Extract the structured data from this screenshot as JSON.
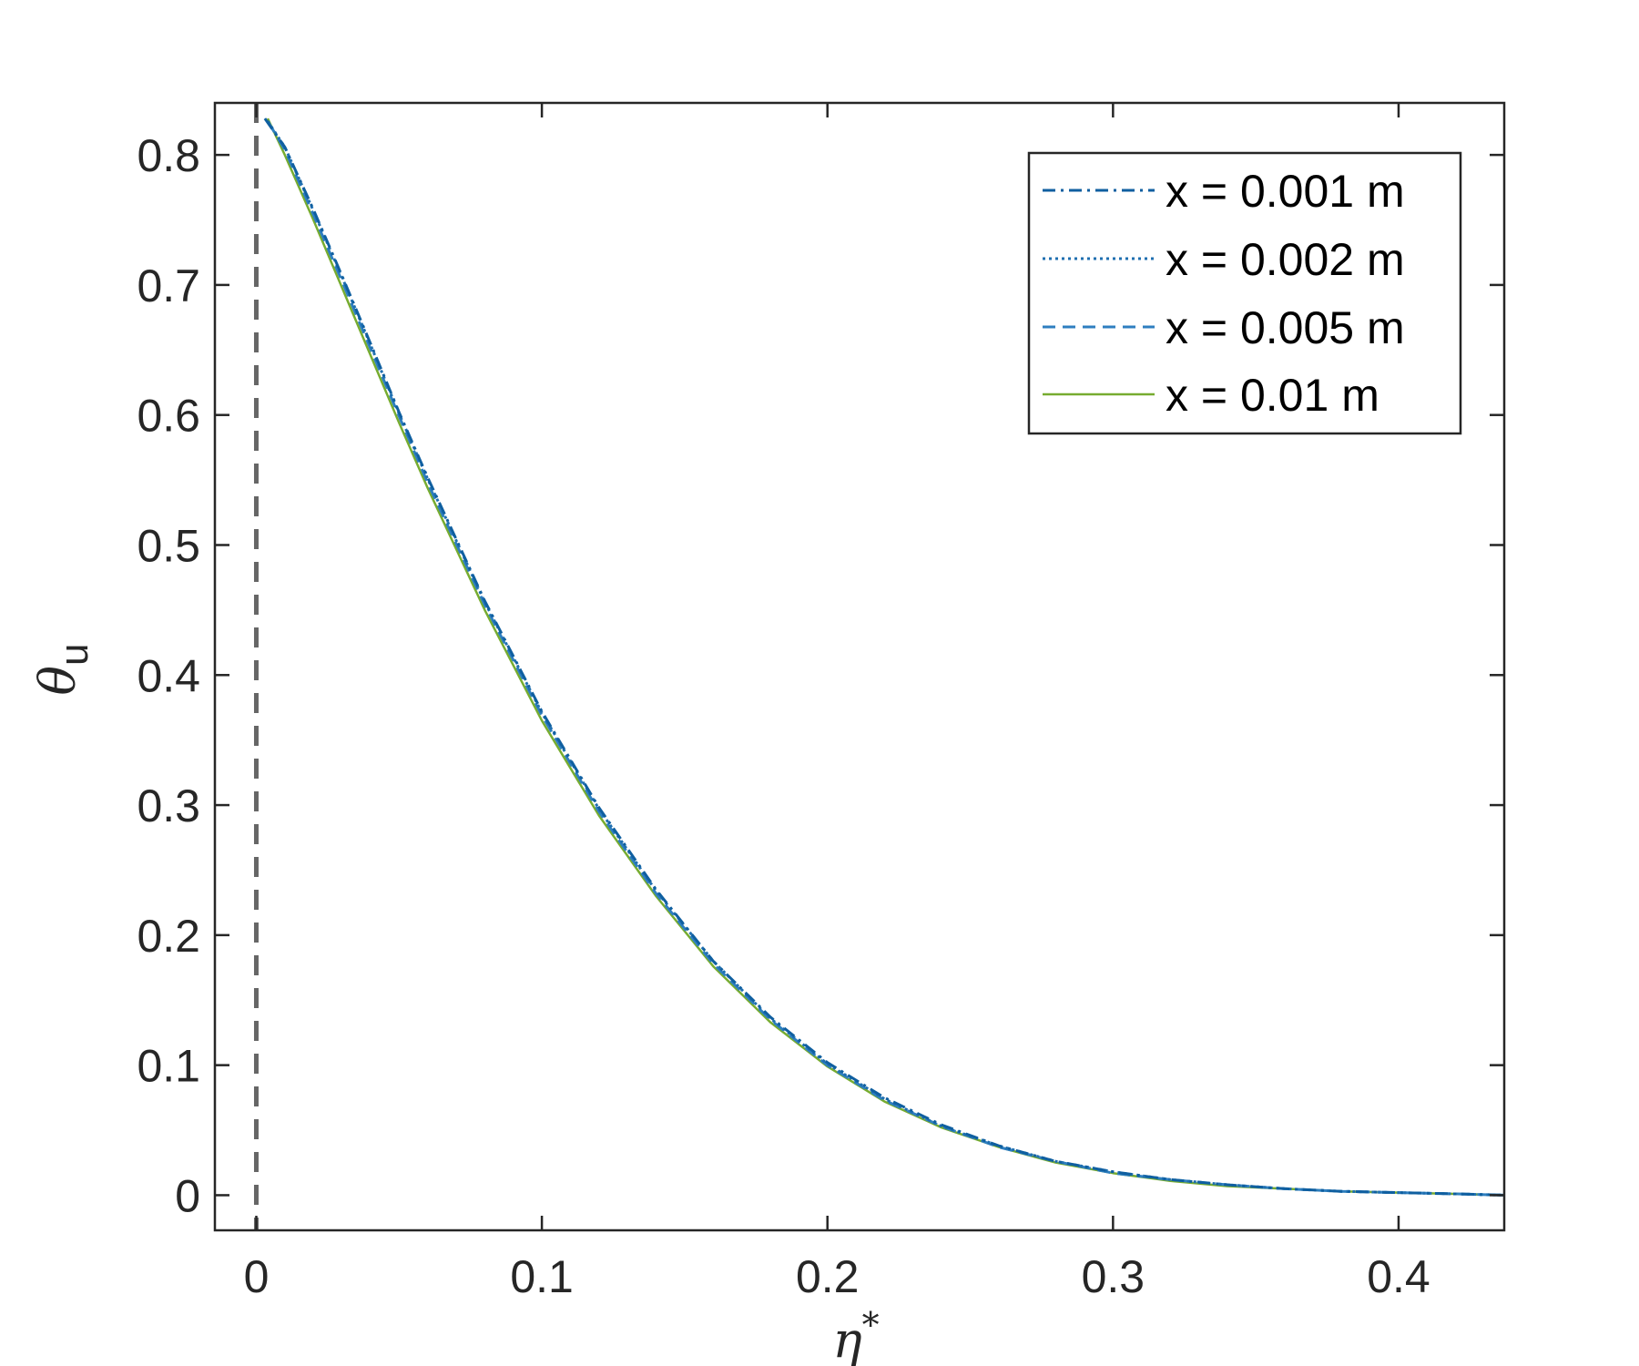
{
  "chart_data": {
    "type": "line",
    "xlabel": {
      "symbol": "η",
      "sup": "*"
    },
    "ylabel": {
      "symbol": "θ",
      "sub": "u"
    },
    "xlim": [
      -0.0145,
      0.437
    ],
    "ylim": [
      -0.027,
      0.84
    ],
    "xticks": [
      0,
      0.1,
      0.2,
      0.3,
      0.4
    ],
    "xtick_labels": [
      "0",
      "0.1",
      "0.2",
      "0.3",
      "0.4"
    ],
    "yticks": [
      0,
      0.1,
      0.2,
      0.3,
      0.4,
      0.5,
      0.6,
      0.7,
      0.8
    ],
    "ytick_labels": [
      "0",
      "0.1",
      "0.2",
      "0.3",
      "0.4",
      "0.5",
      "0.6",
      "0.7",
      "0.8"
    ],
    "grid": false,
    "legend_position": "top-right",
    "reference_line": {
      "x": 0,
      "color": "#666666",
      "style": "dashed"
    },
    "series": [
      {
        "name": "x = 0.001 m",
        "color": "#0f5fa0",
        "style": "dashdot",
        "x": [
          0.003,
          0.01,
          0.02,
          0.03,
          0.04,
          0.05,
          0.06,
          0.08,
          0.1,
          0.12,
          0.14,
          0.16,
          0.18,
          0.2,
          0.22,
          0.24,
          0.26,
          0.28,
          0.3,
          0.32,
          0.34,
          0.36,
          0.38,
          0.4,
          0.42,
          0.437
        ],
        "y": [
          0.828,
          0.806,
          0.758,
          0.707,
          0.655,
          0.602,
          0.552,
          0.457,
          0.372,
          0.298,
          0.235,
          0.18,
          0.137,
          0.102,
          0.075,
          0.054,
          0.038,
          0.026,
          0.018,
          0.012,
          0.008,
          0.005,
          0.003,
          0.002,
          0.001,
          0.0
        ]
      },
      {
        "name": "x = 0.002 m",
        "color": "#1f6fb0",
        "style": "dotted",
        "x": [
          0.004,
          0.01,
          0.02,
          0.03,
          0.04,
          0.05,
          0.06,
          0.08,
          0.1,
          0.12,
          0.14,
          0.16,
          0.18,
          0.2,
          0.22,
          0.24,
          0.26,
          0.28,
          0.3,
          0.32,
          0.34,
          0.36,
          0.38,
          0.4,
          0.42,
          0.437
        ],
        "y": [
          0.826,
          0.806,
          0.757,
          0.706,
          0.654,
          0.601,
          0.551,
          0.456,
          0.371,
          0.297,
          0.234,
          0.18,
          0.136,
          0.101,
          0.074,
          0.053,
          0.038,
          0.026,
          0.018,
          0.012,
          0.008,
          0.005,
          0.003,
          0.002,
          0.001,
          0.0
        ]
      },
      {
        "name": "x = 0.005 m",
        "color": "#2f7fc0",
        "style": "dashed",
        "x": [
          0.004,
          0.01,
          0.02,
          0.03,
          0.04,
          0.05,
          0.06,
          0.08,
          0.1,
          0.12,
          0.14,
          0.16,
          0.18,
          0.2,
          0.22,
          0.24,
          0.26,
          0.28,
          0.3,
          0.32,
          0.34,
          0.36,
          0.38,
          0.4,
          0.42,
          0.437
        ],
        "y": [
          0.826,
          0.804,
          0.754,
          0.703,
          0.651,
          0.599,
          0.548,
          0.454,
          0.369,
          0.295,
          0.232,
          0.178,
          0.135,
          0.1,
          0.073,
          0.053,
          0.037,
          0.026,
          0.017,
          0.012,
          0.008,
          0.005,
          0.003,
          0.002,
          0.001,
          0.0
        ]
      },
      {
        "name": "x = 0.01 m",
        "color": "#77ac30",
        "style": "solid",
        "x": [
          0.004,
          0.01,
          0.02,
          0.03,
          0.04,
          0.05,
          0.06,
          0.08,
          0.1,
          0.12,
          0.14,
          0.16,
          0.18,
          0.2,
          0.22,
          0.24,
          0.26,
          0.28,
          0.3,
          0.32,
          0.34,
          0.36,
          0.38,
          0.4,
          0.42,
          0.437
        ],
        "y": [
          0.828,
          0.8,
          0.75,
          0.698,
          0.646,
          0.594,
          0.544,
          0.45,
          0.365,
          0.292,
          0.23,
          0.176,
          0.133,
          0.099,
          0.072,
          0.052,
          0.037,
          0.025,
          0.017,
          0.011,
          0.007,
          0.005,
          0.003,
          0.002,
          0.001,
          0.0
        ]
      }
    ]
  }
}
